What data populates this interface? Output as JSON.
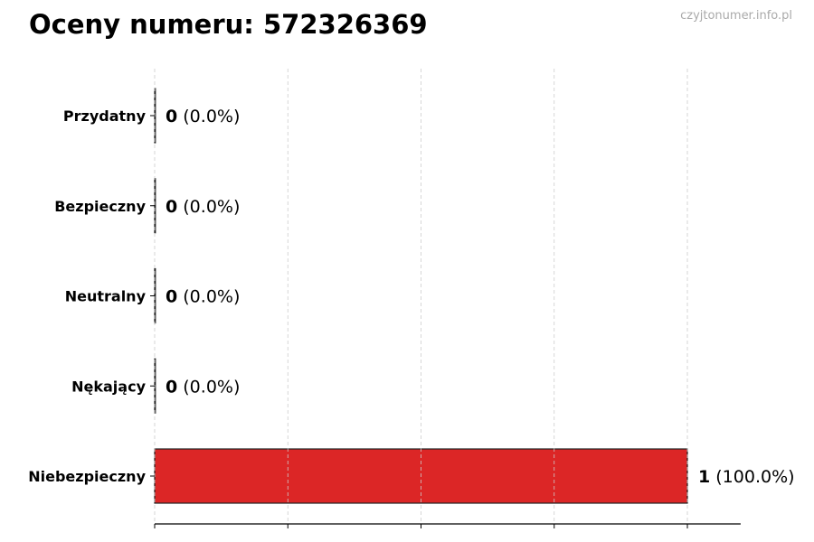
{
  "chart_data": {
    "type": "bar",
    "orientation": "horizontal",
    "title": "Oceny numeru: 572326369",
    "watermark": "czyjtonumer.info.pl",
    "categories": [
      "Przydatny",
      "Bezpieczny",
      "Neutralny",
      "Nękający",
      "Niebezpieczny"
    ],
    "values": [
      0,
      0,
      0,
      0,
      1
    ],
    "value_labels": [
      "0",
      "0",
      "0",
      "0",
      "1"
    ],
    "percent_labels": [
      "(0.0%)",
      "(0.0%)",
      "(0.0%)",
      "(0.0%)",
      "(100.0%)"
    ],
    "colors": [
      "#4caf50",
      "#2e7d32",
      "#9e9e9e",
      "#ff9800",
      "#dc2626"
    ],
    "xlim": [
      0,
      1.1
    ],
    "xticks": [
      0,
      0.25,
      0.5,
      0.75,
      1
    ],
    "grid": "x dashed",
    "xlabel": "",
    "ylabel": ""
  }
}
